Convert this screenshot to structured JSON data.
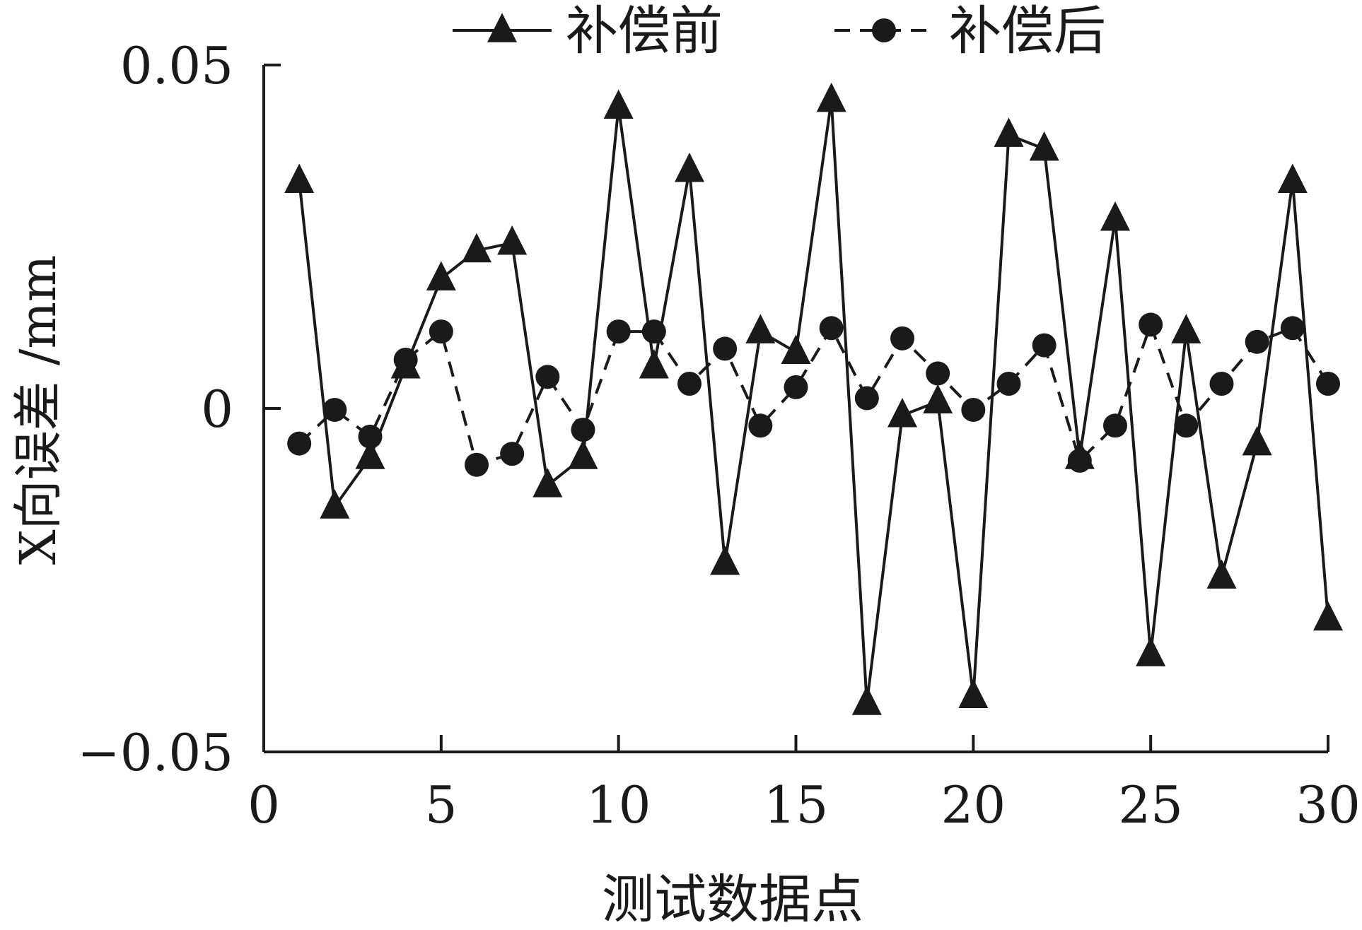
{
  "chart_data": {
    "type": "line",
    "title": "",
    "xlabel": "测试数据点",
    "ylabel": "X向误差 /mm",
    "xlim": [
      0,
      30
    ],
    "ylim": [
      -0.05,
      0.05
    ],
    "xticks": [
      "0",
      "5",
      "10",
      "15",
      "20",
      "25",
      "30"
    ],
    "yticks": [
      "0.05",
      "0",
      "−0.05"
    ],
    "grid": false,
    "legend_position": "top",
    "x": [
      1,
      2,
      3,
      4,
      5,
      6,
      7,
      8,
      9,
      10,
      11,
      12,
      13,
      14,
      15,
      16,
      17,
      18,
      19,
      20,
      21,
      22,
      23,
      24,
      25,
      26,
      27,
      28,
      29,
      30
    ],
    "series": [
      {
        "name": "补偿前",
        "marker": "triangle",
        "line": "solid",
        "color": "#1a1a1a",
        "values": [
          0.0331,
          -0.0143,
          -0.0071,
          0.0061,
          0.0189,
          0.023,
          0.0241,
          -0.0112,
          -0.0071,
          0.0439,
          0.0061,
          0.0347,
          -0.0225,
          0.0112,
          0.0082,
          0.0449,
          -0.0429,
          -0.001,
          0.001,
          -0.0419,
          0.0398,
          0.0378,
          -0.0071,
          0.0276,
          -0.0358,
          0.0112,
          -0.0245,
          -0.0051,
          0.0331,
          -0.0306
        ]
      },
      {
        "name": "补偿后",
        "marker": "circle",
        "line": "dashed",
        "color": "#1a1a1a",
        "values": [
          -0.0051,
          -0.0002,
          -0.0041,
          0.0071,
          0.0112,
          -0.0082,
          -0.0066,
          0.0046,
          -0.0031,
          0.0112,
          0.0112,
          0.0036,
          0.0087,
          -0.0025,
          0.0031,
          0.0117,
          0.0015,
          0.0102,
          0.0051,
          -0.0002,
          0.0036,
          0.0092,
          -0.0076,
          -0.0025,
          0.0122,
          -0.0025,
          0.0036,
          0.0097,
          0.0117,
          0.0036
        ]
      }
    ]
  }
}
